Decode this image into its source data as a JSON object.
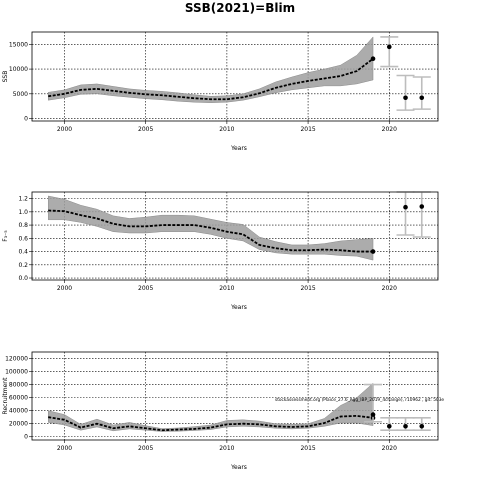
{
  "title": "SSB(2021)=Blim",
  "chart_data": [
    {
      "type": "line",
      "xlabel": "Years",
      "ylabel": "SSB",
      "xlim": [
        1998,
        2023
      ],
      "ylim": [
        -500,
        17500
      ],
      "xticks": [
        2000,
        2005,
        2010,
        2015,
        2020
      ],
      "yticks": [
        0,
        5000,
        10000,
        15000
      ],
      "grid": true,
      "years": [
        1999,
        2000,
        2001,
        2002,
        2003,
        2004,
        2005,
        2006,
        2007,
        2008,
        2009,
        2010,
        2011,
        2012,
        2013,
        2014,
        2015,
        2016,
        2017,
        2018,
        2019
      ],
      "estimate": [
        4500,
        5000,
        5800,
        6000,
        5600,
        5200,
        4900,
        4700,
        4400,
        4100,
        3900,
        3900,
        4300,
        5100,
        6200,
        7000,
        7600,
        8100,
        8600,
        9600,
        12100
      ],
      "lower": [
        3700,
        4200,
        4900,
        5000,
        4600,
        4300,
        4000,
        3800,
        3500,
        3300,
        3200,
        3300,
        3700,
        4400,
        5200,
        5800,
        6200,
        6600,
        6600,
        7000,
        7800
      ],
      "upper": [
        5300,
        5800,
        6800,
        7000,
        6500,
        6000,
        5700,
        5500,
        5200,
        4800,
        4500,
        4600,
        5000,
        6000,
        7400,
        8400,
        9300,
        10000,
        10800,
        12800,
        16500
      ],
      "projections": [
        {
          "year": 2020,
          "value": 14500,
          "lower": 10500,
          "upper": 16500
        },
        {
          "year": 2021,
          "value": 4200,
          "lower": 1700,
          "upper": 8700
        },
        {
          "year": 2022,
          "value": 4200,
          "lower": 1900,
          "upper": 8400
        }
      ]
    },
    {
      "type": "line",
      "xlabel": "Years",
      "ylabel": "F₃₋₅",
      "xlim": [
        1998,
        2023
      ],
      "ylim": [
        -0.03,
        1.3
      ],
      "xticks": [
        2000,
        2005,
        2010,
        2015,
        2020
      ],
      "yticks": [
        "0.0",
        "0.2",
        "0.4",
        "0.6",
        "0.8",
        "1.0",
        "1.2"
      ],
      "grid": true,
      "years": [
        1999,
        2000,
        2001,
        2002,
        2003,
        2004,
        2005,
        2006,
        2007,
        2008,
        2009,
        2010,
        2011,
        2012,
        2013,
        2014,
        2015,
        2016,
        2017,
        2018,
        2019
      ],
      "estimate": [
        1.02,
        1.01,
        0.95,
        0.9,
        0.82,
        0.78,
        0.78,
        0.8,
        0.8,
        0.8,
        0.76,
        0.7,
        0.66,
        0.5,
        0.45,
        0.42,
        0.42,
        0.43,
        0.42,
        0.4,
        0.4
      ],
      "lower": [
        0.88,
        0.88,
        0.84,
        0.78,
        0.7,
        0.68,
        0.68,
        0.7,
        0.7,
        0.7,
        0.66,
        0.6,
        0.56,
        0.43,
        0.38,
        0.36,
        0.36,
        0.36,
        0.34,
        0.33,
        0.27
      ],
      "upper": [
        1.24,
        1.19,
        1.1,
        1.04,
        0.94,
        0.9,
        0.92,
        0.95,
        0.95,
        0.94,
        0.89,
        0.84,
        0.81,
        0.62,
        0.55,
        0.5,
        0.5,
        0.52,
        0.56,
        0.58,
        0.6
      ],
      "projections": [
        {
          "year": 2021,
          "value": 1.07,
          "lower": 0.65,
          "upper": 1.3
        },
        {
          "year": 2022,
          "value": 1.08,
          "lower": 0.62,
          "upper": 1.3
        }
      ]
    },
    {
      "type": "line",
      "xlabel": "Years",
      "ylabel": "Recruitment",
      "xlim": [
        1998,
        2023
      ],
      "ylim": [
        -5000,
        130000
      ],
      "xticks": [
        2000,
        2005,
        2010,
        2015,
        2020
      ],
      "yticks": [
        0,
        20000,
        40000,
        60000,
        80000,
        100000,
        120000
      ],
      "grid": true,
      "annotation": "stockassessment.org (Plaice_27.6_Agg_IBP_2019_4change), r10962 , git: 503e",
      "years": [
        1999,
        2000,
        2001,
        2002,
        2003,
        2004,
        2005,
        2006,
        2007,
        2008,
        2009,
        2010,
        2011,
        2012,
        2013,
        2014,
        2015,
        2016,
        2017,
        2018,
        2019
      ],
      "estimate": [
        30000,
        26000,
        14000,
        20000,
        13000,
        16000,
        13000,
        10000,
        11000,
        12000,
        14000,
        19000,
        20000,
        19000,
        16000,
        15000,
        16000,
        21000,
        31000,
        32000,
        29000
      ],
      "lower": [
        22000,
        18000,
        10000,
        15000,
        9000,
        12000,
        10000,
        8000,
        8500,
        9500,
        11000,
        15000,
        16000,
        15000,
        13000,
        12000,
        13000,
        16000,
        21000,
        21000,
        17000
      ],
      "upper": [
        40000,
        34000,
        19000,
        27000,
        18000,
        22000,
        17000,
        12500,
        13500,
        15500,
        18000,
        25000,
        26000,
        24000,
        20000,
        19000,
        20000,
        28000,
        48000,
        60000,
        82000
      ],
      "projections": [
        {
          "year": 2019,
          "value": 34000,
          "lower": 23000,
          "upper": 80000
        },
        {
          "year": 2020,
          "value": 16000,
          "lower": 10000,
          "upper": 29000
        },
        {
          "year": 2021,
          "value": 16000,
          "lower": 10000,
          "upper": 29000
        },
        {
          "year": 2022,
          "value": 16000,
          "lower": 10000,
          "upper": 29000
        }
      ]
    }
  ]
}
